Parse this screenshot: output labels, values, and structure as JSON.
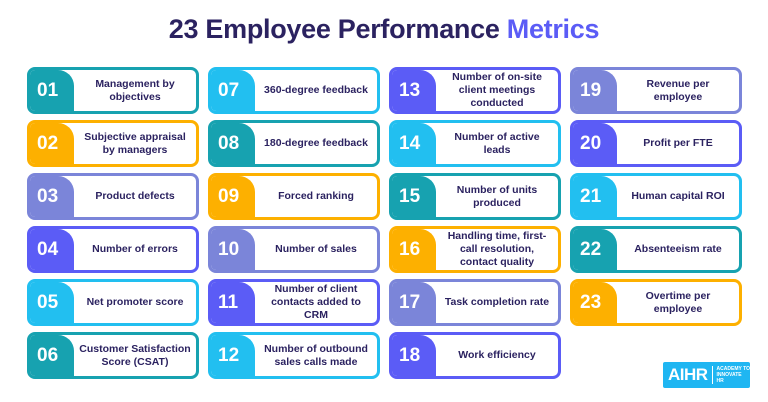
{
  "title": {
    "prefix": "23 Employee Performance",
    "accent": "Metrics"
  },
  "colors": {
    "teal": "#17a2b0",
    "orange": "#fdb000",
    "lavender": "#7b85d9",
    "violet": "#5b5cf6",
    "sky": "#22bff0",
    "navy": "#2b2260"
  },
  "metrics": [
    {
      "num": "01",
      "label": "Management by objectives",
      "color": "#17a2b0"
    },
    {
      "num": "02",
      "label": "Subjective appraisal by managers",
      "color": "#fdb000"
    },
    {
      "num": "03",
      "label": "Product defects",
      "color": "#7b85d9"
    },
    {
      "num": "04",
      "label": "Number of errors",
      "color": "#5b5cf6"
    },
    {
      "num": "05",
      "label": "Net promoter score",
      "color": "#22bff0"
    },
    {
      "num": "06",
      "label": "Customer Satisfaction Score (CSAT)",
      "color": "#17a2b0"
    },
    {
      "num": "07",
      "label": "360-degree feedback",
      "color": "#22bff0"
    },
    {
      "num": "08",
      "label": "180-degree feedback",
      "color": "#17a2b0"
    },
    {
      "num": "09",
      "label": "Forced ranking",
      "color": "#fdb000"
    },
    {
      "num": "10",
      "label": "Number of sales",
      "color": "#7b85d9"
    },
    {
      "num": "11",
      "label": "Number of client contacts added to CRM",
      "color": "#5b5cf6"
    },
    {
      "num": "12",
      "label": "Number of outbound sales calls made",
      "color": "#22bff0"
    },
    {
      "num": "13",
      "label": "Number of on-site client meetings conducted",
      "color": "#5b5cf6"
    },
    {
      "num": "14",
      "label": "Number of active leads",
      "color": "#22bff0"
    },
    {
      "num": "15",
      "label": "Number of units produced",
      "color": "#17a2b0"
    },
    {
      "num": "16",
      "label": "Handling time, first-call resolution, contact quality",
      "color": "#fdb000"
    },
    {
      "num": "17",
      "label": "Task completion rate",
      "color": "#7b85d9"
    },
    {
      "num": "18",
      "label": "Work efficiency",
      "color": "#5b5cf6"
    },
    {
      "num": "19",
      "label": "Revenue per employee",
      "color": "#7b85d9"
    },
    {
      "num": "20",
      "label": "Profit per FTE",
      "color": "#5b5cf6"
    },
    {
      "num": "21",
      "label": "Human capital ROI",
      "color": "#22bff0"
    },
    {
      "num": "22",
      "label": "Absenteeism rate",
      "color": "#17a2b0"
    },
    {
      "num": "23",
      "label": "Overtime per employee",
      "color": "#fdb000"
    }
  ],
  "logo": {
    "main": "AIHR",
    "sub_line1": "ACADEMY TO",
    "sub_line2": "INNOVATE HR"
  }
}
